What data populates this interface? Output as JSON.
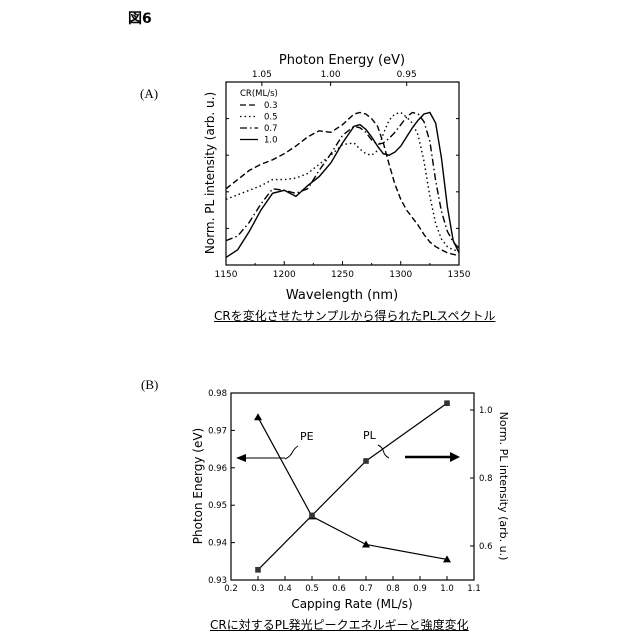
{
  "figure_label": "図6",
  "panel_a": {
    "label": "(A)",
    "caption": "CRを変化させたサンプルから得られたPLスペクトル"
  },
  "panel_b": {
    "label": "(B)",
    "caption": "CRに対するPL発光ピークエネルギーと強度変化"
  },
  "chart_data": [
    {
      "type": "line",
      "title": "",
      "xlabel": "Wavelength (nm)",
      "ylabel": "Norm. PL intensity (arb. u.)",
      "top_xlabel": "Photon Energy (eV)",
      "xlim": [
        1150,
        1350
      ],
      "ylim": [
        0,
        1.2
      ],
      "xticks": [
        1150,
        1200,
        1250,
        1300,
        1350
      ],
      "top_ticks": [
        {
          "label": "1.05",
          "wavelength": 1180.8
        },
        {
          "label": "1.00",
          "wavelength": 1239.8
        },
        {
          "label": "0.95",
          "wavelength": 1305.1
        }
      ],
      "legend_title": "CR(ML/s)",
      "legend_position": "top-left",
      "x": [
        1150,
        1160,
        1170,
        1180,
        1190,
        1200,
        1210,
        1220,
        1230,
        1240,
        1250,
        1260,
        1265,
        1270,
        1275,
        1280,
        1285,
        1290,
        1295,
        1300,
        1305,
        1310,
        1315,
        1320,
        1325,
        1330,
        1335,
        1340,
        1345,
        1350
      ],
      "series": [
        {
          "name": "0.3",
          "style": "dash",
          "values": [
            0.5,
            0.56,
            0.62,
            0.66,
            0.69,
            0.73,
            0.78,
            0.84,
            0.88,
            0.87,
            0.92,
            0.99,
            1.0,
            0.99,
            0.96,
            0.91,
            0.8,
            0.66,
            0.53,
            0.43,
            0.36,
            0.31,
            0.26,
            0.2,
            0.15,
            0.12,
            0.1,
            0.08,
            0.07,
            0.06
          ]
        },
        {
          "name": "0.5",
          "style": "dot",
          "values": [
            0.43,
            0.46,
            0.49,
            0.52,
            0.56,
            0.56,
            0.57,
            0.6,
            0.66,
            0.72,
            0.79,
            0.8,
            0.76,
            0.73,
            0.72,
            0.75,
            0.86,
            0.95,
            0.99,
            1.0,
            0.97,
            0.93,
            0.85,
            0.68,
            0.45,
            0.27,
            0.17,
            0.12,
            0.1,
            0.09
          ]
        },
        {
          "name": "0.7",
          "style": "dashdot",
          "values": [
            0.16,
            0.19,
            0.28,
            0.4,
            0.5,
            0.49,
            0.47,
            0.5,
            0.62,
            0.73,
            0.85,
            0.91,
            0.9,
            0.87,
            0.82,
            0.79,
            0.8,
            0.83,
            0.87,
            0.92,
            0.97,
            1.0,
            0.99,
            0.94,
            0.81,
            0.55,
            0.35,
            0.22,
            0.15,
            0.11
          ]
        },
        {
          "name": "1.0",
          "style": "solid",
          "values": [
            0.05,
            0.1,
            0.22,
            0.36,
            0.47,
            0.49,
            0.45,
            0.52,
            0.58,
            0.67,
            0.8,
            0.91,
            0.92,
            0.89,
            0.84,
            0.78,
            0.73,
            0.72,
            0.74,
            0.78,
            0.84,
            0.9,
            0.95,
            0.99,
            1.0,
            0.93,
            0.7,
            0.38,
            0.16,
            0.08
          ]
        }
      ]
    },
    {
      "type": "line",
      "title": "",
      "xlabel": "Capping Rate (ML/s)",
      "ylabel": "Photon Energy (eV)",
      "y2label": "Norm. PL intensity (arb. u.)",
      "xlim": [
        0.2,
        1.1
      ],
      "ylim": [
        0.93,
        0.98
      ],
      "y2lim": [
        0.5,
        1.05
      ],
      "xticks": [
        0.2,
        0.3,
        0.4,
        0.5,
        0.6,
        0.7,
        0.8,
        0.9,
        1.0,
        1.1
      ],
      "yticks": [
        0.93,
        0.94,
        0.95,
        0.96,
        0.97,
        0.98
      ],
      "y2ticks": [
        0.6,
        0.8,
        1.0
      ],
      "series": [
        {
          "name": "PE",
          "axis": "left",
          "marker": "triangle",
          "x": [
            0.3,
            0.5,
            0.7,
            1.0
          ],
          "values": [
            0.9735,
            0.947,
            0.9395,
            0.9355
          ]
        },
        {
          "name": "PL",
          "axis": "right",
          "marker": "square",
          "x": [
            0.3,
            0.5,
            0.7,
            1.0
          ],
          "values": [
            0.53,
            0.69,
            0.85,
            1.02
          ]
        }
      ],
      "annotations": [
        "PE",
        "PL"
      ]
    }
  ]
}
